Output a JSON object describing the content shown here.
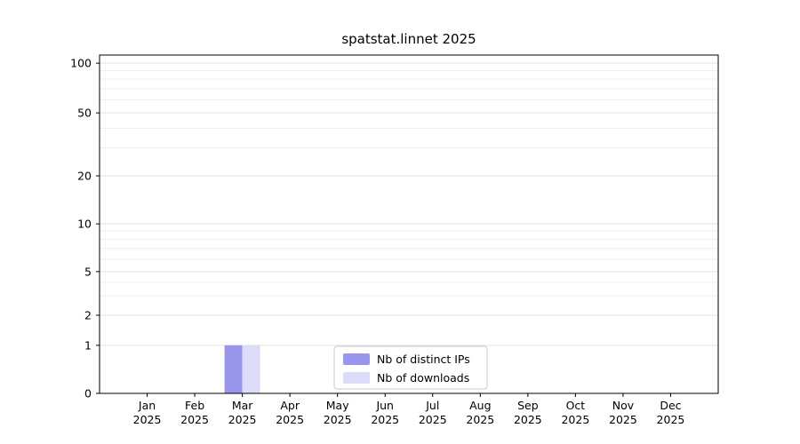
{
  "chart_data": {
    "type": "bar",
    "title": "spatstat.linnet 2025",
    "year_label": "2025",
    "categories": [
      "Jan",
      "Feb",
      "Mar",
      "Apr",
      "May",
      "Jun",
      "Jul",
      "Aug",
      "Sep",
      "Oct",
      "Nov",
      "Dec"
    ],
    "series": [
      {
        "name": "Nb of distinct IPs",
        "color": "#9795ec",
        "values": [
          0,
          0,
          1,
          0,
          0,
          0,
          0,
          0,
          0,
          0,
          0,
          0
        ]
      },
      {
        "name": "Nb of downloads",
        "color": "#dcdcf8",
        "values": [
          0,
          0,
          1,
          0,
          0,
          0,
          0,
          0,
          0,
          0,
          0,
          0
        ]
      }
    ],
    "yticks": [
      0,
      1,
      2,
      5,
      10,
      20,
      50,
      100
    ],
    "minor_gridlines": [
      3,
      4,
      6,
      7,
      8,
      9,
      30,
      40,
      60,
      70,
      80,
      90
    ],
    "ylim": [
      0,
      110
    ],
    "yscale": "log",
    "xlabel": "",
    "ylabel": "",
    "grid": "horizontal",
    "legend_position": "bottom-center-inside",
    "colors": {
      "grid_major": "#e2e2e2",
      "grid_minor": "#ededed",
      "axis": "#000000",
      "text": "#000000",
      "legend_border": "#c8c8c8",
      "background": "#ffffff"
    }
  }
}
